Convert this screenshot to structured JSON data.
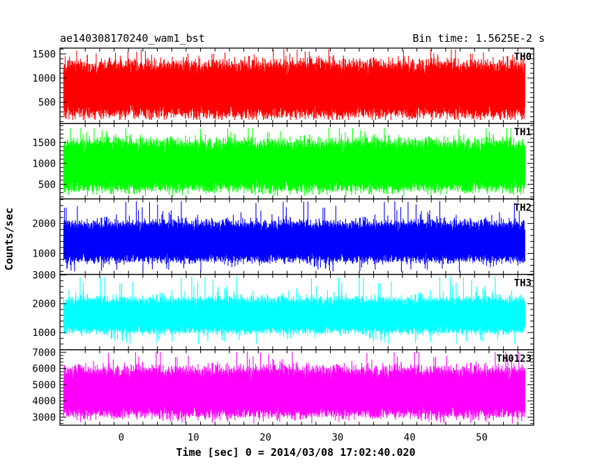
{
  "chart_data": {
    "type": "line",
    "title_left": "ae140308170240_wam1_bst",
    "title_right": "Bin time: 1.5625E-2 s",
    "xlabel": "Time [sec] 0 = 2014/03/08 17:02:40.020",
    "ylabel": "Counts/sec",
    "xlim": [
      -8.5,
      57.2
    ],
    "x_data_range": [
      -8.0,
      56.0
    ],
    "x_ticks": [
      0,
      10,
      20,
      30,
      40,
      50
    ],
    "x_tick_labels": [
      "0",
      "10",
      "20",
      "30",
      "40",
      "50"
    ],
    "grid": false,
    "panels": [
      {
        "name": "TH0",
        "color": "#ff0000",
        "ylim": [
          60,
          1620
        ],
        "y_ticks": [
          500,
          1000,
          1500
        ],
        "y_tick_labels": [
          "500",
          "1000",
          "1500"
        ],
        "typical_range": [
          300,
          1250
        ],
        "min": 130,
        "max": 1600,
        "mean": 760
      },
      {
        "name": "TH1",
        "color": "#00ff00",
        "ylim": [
          150,
          1950
        ],
        "y_ticks": [
          500,
          1000,
          1500
        ],
        "y_tick_labels": [
          "500",
          "1000",
          "1500"
        ],
        "typical_range": [
          450,
          1450
        ],
        "min": 210,
        "max": 1850,
        "mean": 930
      },
      {
        "name": "TH2",
        "color": "#0000ff",
        "ylim": [
          300,
          2820
        ],
        "y_ticks": [
          1000,
          2000
        ],
        "y_tick_labels": [
          "1000",
          "2000"
        ],
        "typical_range": [
          850,
          1950
        ],
        "min": 380,
        "max": 2750,
        "mean": 1400
      },
      {
        "name": "TH3",
        "color": "#00ffff",
        "ylim": [
          400,
          3020
        ],
        "y_ticks": [
          1000,
          2000,
          3000
        ],
        "y_tick_labels": [
          "1000",
          "2000",
          "3000"
        ],
        "typical_range": [
          1100,
          2100
        ],
        "min": 600,
        "max": 2950,
        "mean": 1650
      },
      {
        "name": "TH0123",
        "color": "#ff00ff",
        "ylim": [
          2500,
          7150
        ],
        "y_ticks": [
          3000,
          4000,
          5000,
          6000,
          7000
        ],
        "y_tick_labels": [
          "3000",
          "4000",
          "5000",
          "6000",
          "7000"
        ],
        "typical_range": [
          3300,
          5800
        ],
        "min": 2600,
        "max": 7050,
        "mean": 4600
      }
    ]
  }
}
